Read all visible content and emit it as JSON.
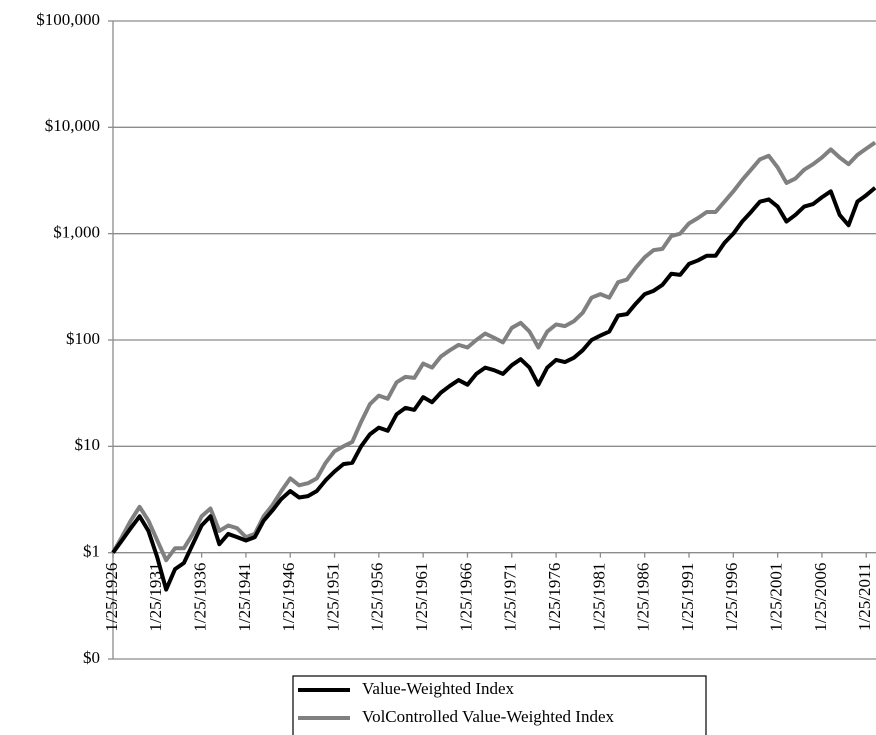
{
  "chart_data": {
    "type": "line",
    "x": [
      1926,
      1927,
      1928,
      1929,
      1930,
      1931,
      1932,
      1933,
      1934,
      1935,
      1936,
      1937,
      1938,
      1939,
      1940,
      1941,
      1942,
      1943,
      1944,
      1945,
      1946,
      1947,
      1948,
      1949,
      1950,
      1951,
      1952,
      1953,
      1954,
      1955,
      1956,
      1957,
      1958,
      1959,
      1960,
      1961,
      1962,
      1963,
      1964,
      1965,
      1966,
      1967,
      1968,
      1969,
      1970,
      1971,
      1972,
      1973,
      1974,
      1975,
      1976,
      1977,
      1978,
      1979,
      1980,
      1981,
      1982,
      1983,
      1984,
      1985,
      1986,
      1987,
      1988,
      1989,
      1990,
      1991,
      1992,
      1993,
      1994,
      1995,
      1996,
      1997,
      1998,
      1999,
      2000,
      2001,
      2002,
      2003,
      2004,
      2005,
      2006,
      2007,
      2008,
      2009,
      2010,
      2011,
      2012
    ],
    "series": [
      {
        "name": "Value-Weighted Index",
        "color": "#000000",
        "values": [
          1,
          1.3,
          1.7,
          2.2,
          1.6,
          0.9,
          0.45,
          0.7,
          0.8,
          1.2,
          1.8,
          2.2,
          1.2,
          1.5,
          1.4,
          1.3,
          1.4,
          2.0,
          2.5,
          3.2,
          3.8,
          3.3,
          3.4,
          3.8,
          4.8,
          5.8,
          6.8,
          7.0,
          10,
          13,
          15,
          14,
          20,
          23,
          22,
          29,
          26,
          32,
          37,
          42,
          38,
          48,
          55,
          52,
          48,
          58,
          66,
          55,
          38,
          55,
          65,
          62,
          68,
          80,
          100,
          110,
          120,
          170,
          175,
          220,
          270,
          290,
          330,
          420,
          410,
          520,
          560,
          620,
          620,
          820,
          1000,
          1300,
          1600,
          2000,
          2100,
          1800,
          1300,
          1500,
          1800,
          1900,
          2200,
          2500,
          1500,
          1200,
          2000,
          2300,
          2700
        ]
      },
      {
        "name": "VolControlled Value-Weighted Index",
        "color": "#808080",
        "values": [
          1,
          1.4,
          2.0,
          2.7,
          2.0,
          1.3,
          0.85,
          1.1,
          1.1,
          1.5,
          2.2,
          2.6,
          1.6,
          1.8,
          1.7,
          1.4,
          1.5,
          2.2,
          2.8,
          3.8,
          5,
          4.3,
          4.5,
          5,
          7,
          9,
          10,
          11,
          17,
          25,
          30,
          28,
          40,
          45,
          44,
          60,
          55,
          70,
          80,
          90,
          85,
          100,
          115,
          105,
          95,
          130,
          145,
          120,
          85,
          120,
          140,
          135,
          150,
          180,
          250,
          270,
          250,
          350,
          370,
          480,
          600,
          700,
          720,
          950,
          1000,
          1250,
          1400,
          1600,
          1600,
          2000,
          2500,
          3200,
          4000,
          5000,
          5400,
          4200,
          3000,
          3300,
          4000,
          4500,
          5200,
          6200,
          5200,
          4500,
          5500,
          6300,
          7200
        ]
      }
    ],
    "xlim": [
      1926,
      2012.1
    ],
    "xticks": [
      {
        "value": 1926,
        "label": "1/25/1926"
      },
      {
        "value": 1931,
        "label": "1/25/1931"
      },
      {
        "value": 1936,
        "label": "1/25/1936"
      },
      {
        "value": 1941,
        "label": "1/25/1941"
      },
      {
        "value": 1946,
        "label": "1/25/1946"
      },
      {
        "value": 1951,
        "label": "1/25/1951"
      },
      {
        "value": 1956,
        "label": "1/25/1956"
      },
      {
        "value": 1961,
        "label": "1/25/1961"
      },
      {
        "value": 1966,
        "label": "1/25/1966"
      },
      {
        "value": 1971,
        "label": "1/25/1971"
      },
      {
        "value": 1976,
        "label": "1/25/1976"
      },
      {
        "value": 1981,
        "label": "1/25/1981"
      },
      {
        "value": 1986,
        "label": "1/25/1986"
      },
      {
        "value": 1991,
        "label": "1/25/1991"
      },
      {
        "value": 1996,
        "label": "1/25/1996"
      },
      {
        "value": 2001,
        "label": "1/25/2001"
      },
      {
        "value": 2006,
        "label": "1/25/2006"
      },
      {
        "value": 2011,
        "label": "1/25/2011"
      }
    ],
    "ylim": [
      0.1,
      100000
    ],
    "yticks": [
      {
        "value": 0.1,
        "label": "$0"
      },
      {
        "value": 1,
        "label": "$1"
      },
      {
        "value": 10,
        "label": "$10"
      },
      {
        "value": 100,
        "label": "$100"
      },
      {
        "value": 1000,
        "label": "$1,000"
      },
      {
        "value": 10000,
        "label": "$10,000"
      },
      {
        "value": 100000,
        "label": "$100,000"
      }
    ],
    "log_y": true,
    "grid": true,
    "legend": "bottom"
  }
}
